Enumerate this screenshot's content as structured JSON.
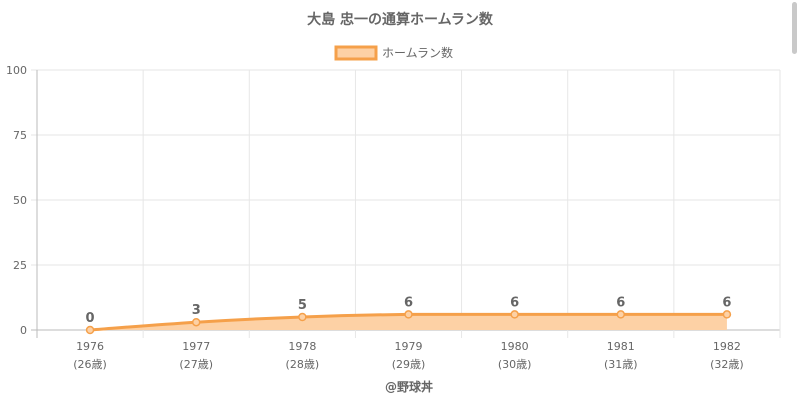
{
  "chart_data": {
    "type": "area",
    "title": "大島 忠一の通算ホームラン数",
    "legend": {
      "label": "ホームラン数",
      "position": "top"
    },
    "categories": [
      "1976",
      "1977",
      "1978",
      "1979",
      "1980",
      "1981",
      "1982"
    ],
    "age_labels": [
      "(26歳)",
      "(27歳)",
      "(28歳)",
      "(29歳)",
      "(30歳)",
      "(31歳)",
      "(32歳)"
    ],
    "series": [
      {
        "name": "ホームラン数",
        "values": [
          0,
          3,
          5,
          6,
          6,
          6,
          6
        ]
      }
    ],
    "ylim": [
      0,
      100
    ],
    "yticks": [
      0,
      25,
      50,
      75,
      100
    ],
    "grid": true,
    "data_labels": true,
    "xlabel": "@野球丼",
    "ylabel": "",
    "colors": {
      "line": "#f5a04a",
      "fill": "#fdd1a5",
      "text": "#666666",
      "grid": "#e6e6e6"
    }
  }
}
